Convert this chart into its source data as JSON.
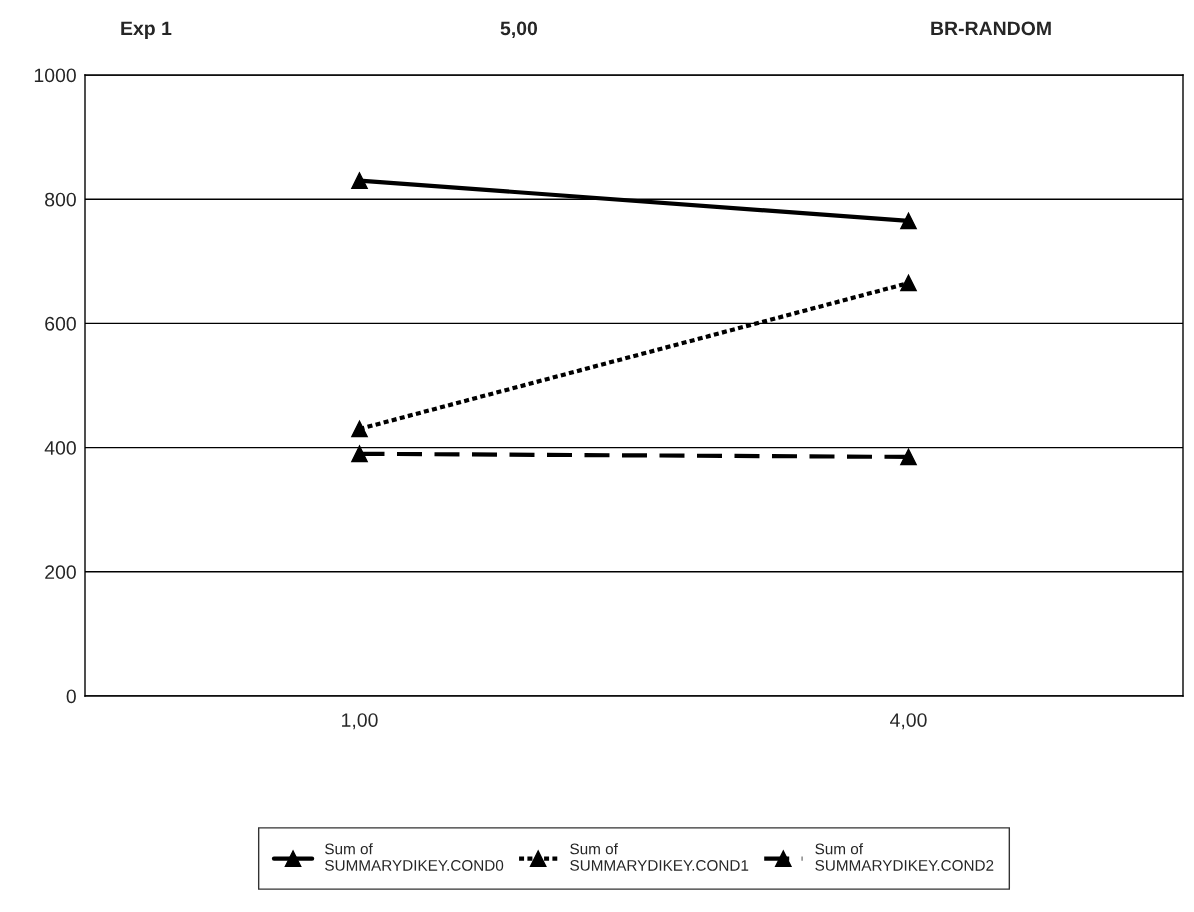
{
  "chart_data": {
    "type": "line",
    "categories": [
      "1,00",
      "4,00"
    ],
    "series": [
      {
        "name": "Sum of\nSUMMARYDIKEY.COND0",
        "color": "#000000",
        "line_style": "solid",
        "values": [
          830,
          765
        ]
      },
      {
        "name": "Sum of\nSUMMARYDIKEY.COND1",
        "color": "#000000",
        "line_style": "dotted",
        "values": [
          430,
          665
        ]
      },
      {
        "name": "Sum of\nSUMMARYDIKEY.COND2",
        "color": "#000000",
        "line_style": "dashed",
        "values": [
          390,
          385
        ]
      }
    ],
    "ylim": [
      0,
      1000
    ],
    "yticks": [
      0,
      200,
      400,
      600,
      800,
      1000
    ],
    "grid": "y",
    "legend": "bottom",
    "marker": "triangle",
    "annotations": [
      "Exp 1",
      "5,00",
      "BR-RANDOM"
    ]
  }
}
